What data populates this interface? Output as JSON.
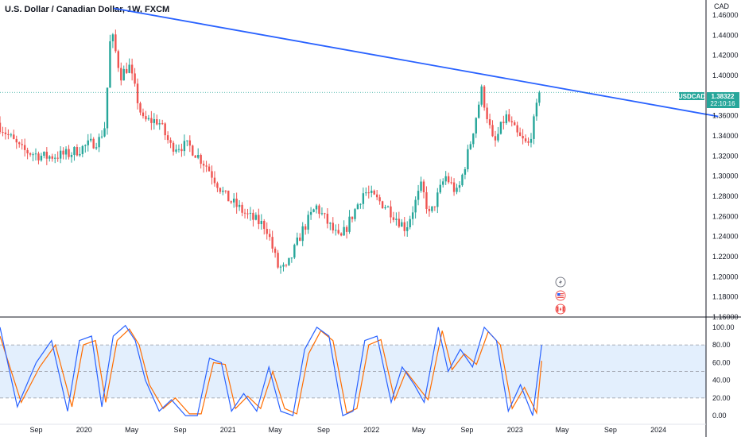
{
  "header": {
    "title": "U.S. Dollar / Canadian Dollar, 1W, FXCM"
  },
  "price_tag": {
    "symbol": "USDCAD",
    "price": "1.38322",
    "countdown": "22:10:16"
  },
  "colors": {
    "up": "#26a69a",
    "down": "#ef5350",
    "trendline": "#2962ff",
    "stoch_k": "#2962ff",
    "stoch_d": "#ff6d00",
    "band_fill": "#e3effd",
    "tag_bg": "#26a69a"
  },
  "icons": [
    "flash-icon",
    "us-flag-icon",
    "canada-flag-icon"
  ],
  "chart_data": [
    {
      "type": "candlestick",
      "currency_label": "CAD",
      "y_ticks": [
        "1.46000",
        "1.44000",
        "1.42000",
        "1.40000",
        "1.38000",
        "1.36000",
        "1.34000",
        "1.32000",
        "1.30000",
        "1.28000",
        "1.26000",
        "1.24000",
        "1.22000",
        "1.20000",
        "1.18000",
        "1.16000"
      ],
      "x_ticks": [
        "Sep",
        "2020",
        "May",
        "Sep",
        "2021",
        "May",
        "Sep",
        "2022",
        "May",
        "Sep",
        "2023",
        "May",
        "Sep",
        "2024"
      ],
      "ylim": [
        1.16,
        1.475
      ],
      "last_price": 1.38322,
      "trendline": {
        "from": {
          "date": "2020-03-16",
          "price": 1.4668
        },
        "to": {
          "date": "2024-06-01",
          "price": 1.3593
        }
      },
      "anchors": [
        {
          "date": "2019-06-01",
          "price": 1.353
        },
        {
          "date": "2019-08-01",
          "price": 1.326
        },
        {
          "date": "2019-10-01",
          "price": 1.319
        },
        {
          "date": "2019-12-01",
          "price": 1.322
        },
        {
          "date": "2020-02-15",
          "price": 1.336
        },
        {
          "date": "2020-03-01",
          "price": 1.35
        },
        {
          "date": "2020-03-16",
          "price": 1.445
        },
        {
          "date": "2020-04-10",
          "price": 1.4
        },
        {
          "date": "2020-05-01",
          "price": 1.41
        },
        {
          "date": "2020-06-05",
          "price": 1.355
        },
        {
          "date": "2020-07-15",
          "price": 1.355
        },
        {
          "date": "2020-08-15",
          "price": 1.33
        },
        {
          "date": "2020-10-01",
          "price": 1.33
        },
        {
          "date": "2020-11-15",
          "price": 1.31
        },
        {
          "date": "2021-01-01",
          "price": 1.28
        },
        {
          "date": "2021-03-01",
          "price": 1.26
        },
        {
          "date": "2021-04-15",
          "price": 1.25
        },
        {
          "date": "2021-05-15",
          "price": 1.21
        },
        {
          "date": "2021-06-05",
          "price": 1.207
        },
        {
          "date": "2021-07-15",
          "price": 1.245
        },
        {
          "date": "2021-08-20",
          "price": 1.27
        },
        {
          "date": "2021-10-20",
          "price": 1.236
        },
        {
          "date": "2021-12-20",
          "price": 1.285
        },
        {
          "date": "2022-02-15",
          "price": 1.27
        },
        {
          "date": "2022-04-05",
          "price": 1.248
        },
        {
          "date": "2022-05-15",
          "price": 1.29
        },
        {
          "date": "2022-06-05",
          "price": 1.26
        },
        {
          "date": "2022-07-15",
          "price": 1.3
        },
        {
          "date": "2022-08-15",
          "price": 1.282
        },
        {
          "date": "2022-09-15",
          "price": 1.33
        },
        {
          "date": "2022-10-15",
          "price": 1.385
        },
        {
          "date": "2022-11-15",
          "price": 1.33
        },
        {
          "date": "2022-12-15",
          "price": 1.36
        },
        {
          "date": "2023-01-15",
          "price": 1.34
        },
        {
          "date": "2023-02-10",
          "price": 1.33
        },
        {
          "date": "2023-03-01",
          "price": 1.36
        },
        {
          "date": "2023-03-10",
          "price": 1.383
        }
      ]
    },
    {
      "type": "line",
      "indicator": "stochastic",
      "y_ticks": [
        "100.00",
        "80.00",
        "60.00",
        "40.00",
        "20.00",
        "0.00"
      ],
      "ylim": [
        -8,
        108
      ],
      "bands": [
        20,
        50,
        80
      ],
      "k_anchors": [
        {
          "date": "2019-06-01",
          "value": 100
        },
        {
          "date": "2019-07-15",
          "value": 10
        },
        {
          "date": "2019-09-01",
          "value": 60
        },
        {
          "date": "2019-10-10",
          "value": 85
        },
        {
          "date": "2019-11-20",
          "value": 5
        },
        {
          "date": "2019-12-20",
          "value": 85
        },
        {
          "date": "2020-01-20",
          "value": 90
        },
        {
          "date": "2020-02-15",
          "value": 10
        },
        {
          "date": "2020-03-15",
          "value": 90
        },
        {
          "date": "2020-04-15",
          "value": 102
        },
        {
          "date": "2020-05-10",
          "value": 85
        },
        {
          "date": "2020-06-05",
          "value": 40
        },
        {
          "date": "2020-07-10",
          "value": 5
        },
        {
          "date": "2020-08-10",
          "value": 18
        },
        {
          "date": "2020-09-15",
          "value": 0
        },
        {
          "date": "2020-10-15",
          "value": 0
        },
        {
          "date": "2020-11-15",
          "value": 65
        },
        {
          "date": "2020-12-15",
          "value": 60
        },
        {
          "date": "2021-01-10",
          "value": 5
        },
        {
          "date": "2021-02-10",
          "value": 25
        },
        {
          "date": "2021-03-15",
          "value": 5
        },
        {
          "date": "2021-04-15",
          "value": 55
        },
        {
          "date": "2021-05-15",
          "value": 5
        },
        {
          "date": "2021-06-15",
          "value": 0
        },
        {
          "date": "2021-07-15",
          "value": 75
        },
        {
          "date": "2021-08-15",
          "value": 100
        },
        {
          "date": "2021-09-15",
          "value": 90
        },
        {
          "date": "2021-10-20",
          "value": 0
        },
        {
          "date": "2021-11-15",
          "value": 5
        },
        {
          "date": "2021-12-15",
          "value": 85
        },
        {
          "date": "2022-01-15",
          "value": 90
        },
        {
          "date": "2022-02-20",
          "value": 15
        },
        {
          "date": "2022-03-20",
          "value": 55
        },
        {
          "date": "2022-04-20",
          "value": 35
        },
        {
          "date": "2022-05-15",
          "value": 15
        },
        {
          "date": "2022-06-20",
          "value": 100
        },
        {
          "date": "2022-07-15",
          "value": 50
        },
        {
          "date": "2022-08-15",
          "value": 75
        },
        {
          "date": "2022-09-15",
          "value": 55
        },
        {
          "date": "2022-10-15",
          "value": 100
        },
        {
          "date": "2022-11-15",
          "value": 85
        },
        {
          "date": "2022-12-15",
          "value": 5
        },
        {
          "date": "2023-01-15",
          "value": 35
        },
        {
          "date": "2023-02-15",
          "value": 0
        },
        {
          "date": "2023-03-10",
          "value": 80
        }
      ],
      "d_anchors": [
        {
          "date": "2019-06-01",
          "value": 90
        },
        {
          "date": "2019-07-25",
          "value": 15
        },
        {
          "date": "2019-09-10",
          "value": 55
        },
        {
          "date": "2019-10-20",
          "value": 80
        },
        {
          "date": "2019-12-01",
          "value": 10
        },
        {
          "date": "2019-12-30",
          "value": 80
        },
        {
          "date": "2020-01-30",
          "value": 85
        },
        {
          "date": "2020-02-25",
          "value": 15
        },
        {
          "date": "2020-03-25",
          "value": 85
        },
        {
          "date": "2020-04-25",
          "value": 98
        },
        {
          "date": "2020-05-20",
          "value": 80
        },
        {
          "date": "2020-06-15",
          "value": 35
        },
        {
          "date": "2020-07-20",
          "value": 8
        },
        {
          "date": "2020-08-20",
          "value": 20
        },
        {
          "date": "2020-09-25",
          "value": 2
        },
        {
          "date": "2020-10-25",
          "value": 2
        },
        {
          "date": "2020-11-25",
          "value": 60
        },
        {
          "date": "2020-12-25",
          "value": 58
        },
        {
          "date": "2021-01-20",
          "value": 8
        },
        {
          "date": "2021-02-20",
          "value": 22
        },
        {
          "date": "2021-03-25",
          "value": 8
        },
        {
          "date": "2021-04-25",
          "value": 50
        },
        {
          "date": "2021-05-25",
          "value": 8
        },
        {
          "date": "2021-06-25",
          "value": 2
        },
        {
          "date": "2021-07-25",
          "value": 70
        },
        {
          "date": "2021-08-25",
          "value": 96
        },
        {
          "date": "2021-09-25",
          "value": 85
        },
        {
          "date": "2021-10-30",
          "value": 3
        },
        {
          "date": "2021-11-25",
          "value": 8
        },
        {
          "date": "2021-12-25",
          "value": 80
        },
        {
          "date": "2022-01-25",
          "value": 86
        },
        {
          "date": "2022-03-01",
          "value": 18
        },
        {
          "date": "2022-03-30",
          "value": 50
        },
        {
          "date": "2022-04-30",
          "value": 32
        },
        {
          "date": "2022-05-25",
          "value": 18
        },
        {
          "date": "2022-06-30",
          "value": 96
        },
        {
          "date": "2022-07-25",
          "value": 52
        },
        {
          "date": "2022-08-25",
          "value": 70
        },
        {
          "date": "2022-09-25",
          "value": 58
        },
        {
          "date": "2022-10-25",
          "value": 95
        },
        {
          "date": "2022-11-25",
          "value": 80
        },
        {
          "date": "2022-12-25",
          "value": 8
        },
        {
          "date": "2023-01-25",
          "value": 32
        },
        {
          "date": "2023-02-25",
          "value": 3
        },
        {
          "date": "2023-03-10",
          "value": 62
        }
      ]
    }
  ]
}
